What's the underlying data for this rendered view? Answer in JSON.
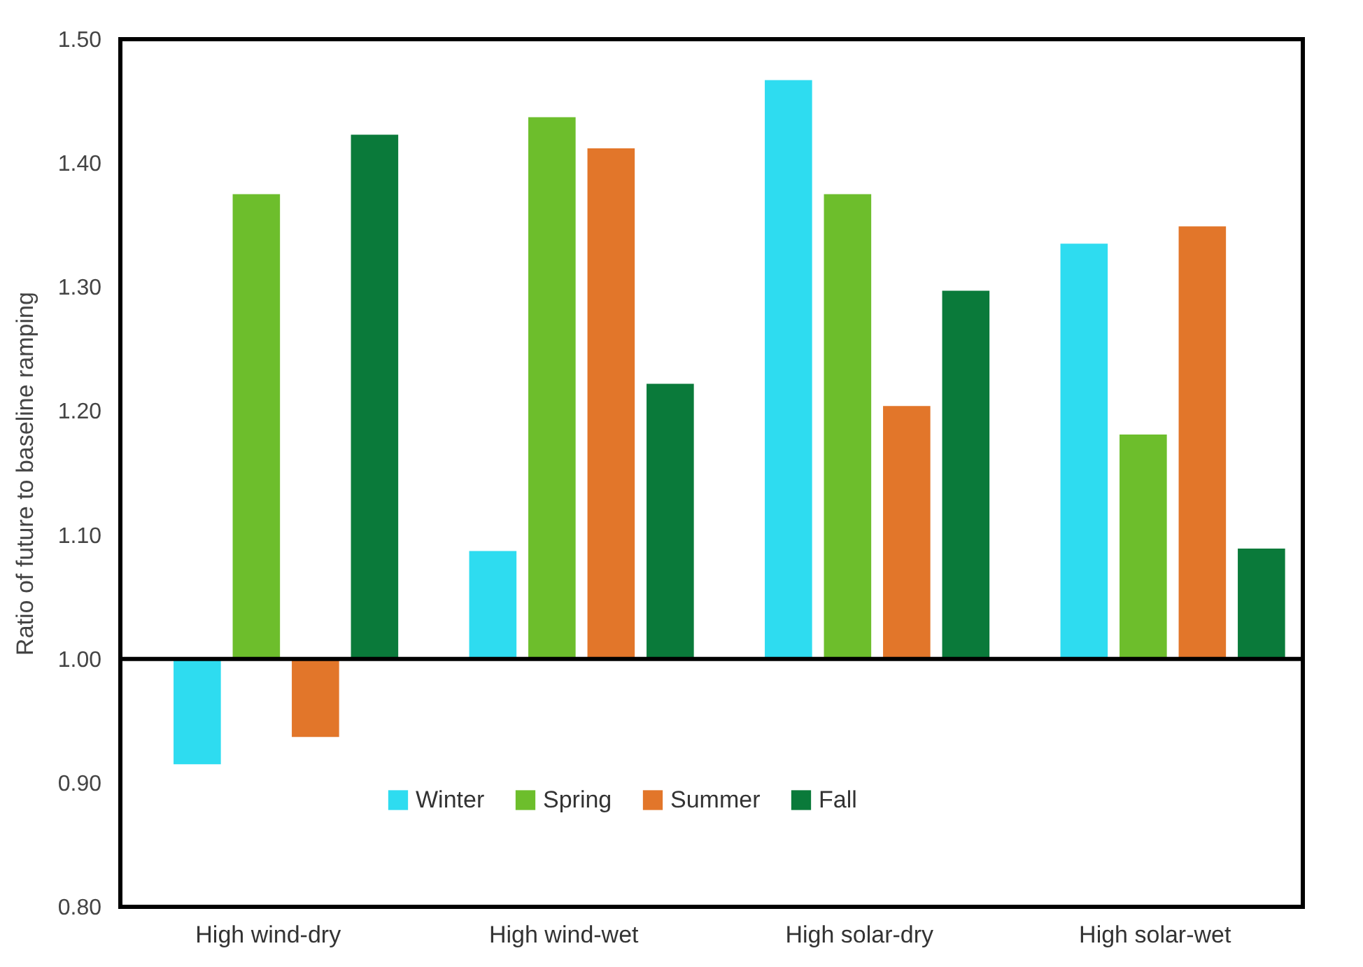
{
  "chart_data": {
    "type": "bar",
    "ylabel": "Ratio of future to baseline ramping",
    "categories": [
      "High wind-dry",
      "High wind-wet",
      "High solar-dry",
      "High solar-wet"
    ],
    "series": [
      {
        "name": "Winter",
        "color": "#2edcf0",
        "base": [
          1.0,
          1.0,
          1.0,
          1.0
        ],
        "values": [
          -0.085,
          0.087,
          0.467,
          0.335
        ]
      },
      {
        "name": "Spring",
        "color": "#6dbe2c",
        "base": [
          1.0,
          1.0,
          1.0,
          1.0
        ],
        "values": [
          0.375,
          0.437,
          0.375,
          0.181
        ]
      },
      {
        "name": "Summer",
        "color": "#e2762a",
        "base": [
          1.0,
          1.0,
          1.0,
          1.0
        ],
        "values": [
          -0.063,
          0.412,
          0.204,
          0.349
        ]
      },
      {
        "name": "Fall",
        "color": "#0a7a3a",
        "base": [
          1.0,
          1.0,
          1.0,
          1.0
        ],
        "values": [
          0.423,
          0.222,
          0.297,
          0.089
        ]
      }
    ],
    "ylim": [
      0.8,
      1.5
    ],
    "yticks": [
      {
        "value": 0.8,
        "label": "0.80"
      },
      {
        "value": 0.9,
        "label": "0.90"
      },
      {
        "value": 1.0,
        "label": "1.00"
      },
      {
        "value": 1.1,
        "label": "1.10"
      },
      {
        "value": 1.2,
        "label": "1.20"
      },
      {
        "value": 1.3,
        "label": "1.30"
      },
      {
        "value": 1.4,
        "label": "1.40"
      },
      {
        "value": 1.5,
        "label": "1.50"
      }
    ],
    "ref_lines": [
      {
        "axis": "y",
        "value": 1.0
      }
    ],
    "grid": false,
    "legend": "bottom"
  }
}
